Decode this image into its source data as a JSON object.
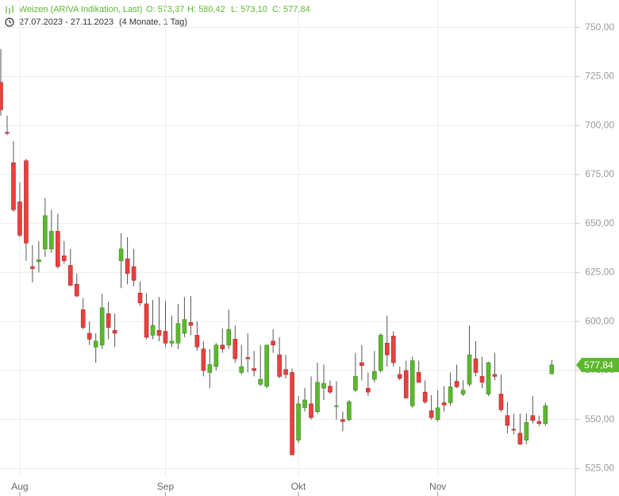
{
  "chart_data": {
    "type": "candlestick",
    "title": "Weizen (ARIVA Indikation, Last)",
    "ohlc_labels": [
      "O: 573,37",
      "H: 580,42",
      "L: 573,10",
      "C: 577,84"
    ],
    "subtitle": "27.07.2023 - 27.11.2023",
    "period": "(4 Monate, 1 Tag)",
    "categories": [
      null,
      null,
      null,
      "Aug",
      null,
      null,
      null,
      null,
      null,
      null,
      null,
      null,
      null,
      null,
      null,
      null,
      null,
      null,
      null,
      null,
      null,
      null,
      null,
      null,
      null,
      null,
      "Sep",
      null,
      null,
      null,
      null,
      null,
      null,
      null,
      null,
      null,
      null,
      null,
      null,
      null,
      null,
      null,
      null,
      null,
      null,
      null,
      null,
      "Okt",
      null,
      null,
      null,
      null,
      null,
      null,
      null,
      null,
      null,
      null,
      null,
      null,
      null,
      null,
      null,
      null,
      null,
      null,
      null,
      null,
      null,
      "Nov",
      null,
      null,
      null,
      null,
      null,
      null,
      null,
      null,
      null,
      null,
      null,
      null,
      null,
      null,
      null,
      null,
      null,
      null
    ],
    "open": [
      722,
      696.5,
      681,
      661,
      682,
      628,
      630.5,
      637,
      637,
      646,
      633.5,
      628.6,
      619,
      606,
      594,
      587,
      588,
      604,
      595.5,
      631,
      632,
      628,
      614.5,
      609,
      593,
      595.5,
      595,
      589,
      589,
      594,
      599.5,
      593,
      586,
      574,
      577,
      588,
      588,
      591,
      574,
      581.6,
      576,
      568,
      567,
      590,
      583,
      575.5,
      574,
      539.5,
      556,
      558,
      554,
      566,
      567,
      557,
      550,
      550,
      565,
      579,
      566,
      570.5,
      575,
      589,
      592.6,
      573,
      575,
      557,
      574,
      564,
      554.5,
      550,
      558.6,
      558.6,
      569.5,
      563,
      568,
      581,
      572,
      563,
      573,
      563,
      552,
      545,
      543,
      539.5,
      552,
      549,
      548,
      573.37
    ],
    "high": [
      739,
      705,
      692,
      671,
      683,
      639,
      641,
      663,
      657,
      655,
      641,
      637,
      624.5,
      612,
      600,
      594,
      614,
      610,
      604,
      645,
      643,
      637,
      620.5,
      614.5,
      611,
      612.5,
      610.5,
      603,
      609,
      612.5,
      613,
      600,
      590,
      586,
      589,
      596.5,
      606,
      598,
      588,
      594,
      585,
      588,
      588,
      596,
      592,
      583,
      576,
      562,
      566,
      572,
      579,
      578,
      570,
      569.5,
      554,
      560,
      584,
      588,
      574,
      585,
      594,
      603,
      595,
      577,
      580,
      582,
      580,
      570,
      562.5,
      565,
      567,
      574,
      578,
      570,
      598,
      590,
      582,
      579.5,
      584,
      573,
      559,
      553,
      553,
      553,
      562,
      552,
      558.5,
      580.42
    ],
    "low": [
      705,
      695,
      656,
      643,
      631,
      620,
      625,
      633,
      635,
      627,
      629.5,
      618,
      612.5,
      596,
      588,
      579,
      586,
      591,
      587,
      617,
      619,
      618,
      608,
      591,
      591,
      590,
      587,
      587,
      586,
      592,
      593,
      585,
      572,
      566,
      575,
      584,
      586,
      579,
      573,
      574,
      572,
      567,
      566,
      584,
      571,
      571,
      532,
      538,
      554,
      550,
      553,
      560,
      563,
      550,
      544,
      549,
      564,
      570,
      562,
      569,
      574,
      577,
      577,
      570,
      561,
      556,
      569,
      558,
      550,
      549,
      554,
      557,
      566,
      562,
      567,
      572,
      566,
      562,
      570,
      554,
      543,
      542.5,
      537,
      537.5,
      548,
      546.7,
      546.7,
      573.1
    ],
    "close": [
      708,
      696,
      657,
      644,
      640,
      627,
      631.5,
      654,
      646,
      628,
      631,
      618.5,
      613,
      597,
      591,
      590,
      607,
      597,
      594,
      637,
      624.5,
      621,
      609.5,
      592,
      598,
      593,
      589,
      590,
      599,
      601,
      598,
      587,
      575,
      578,
      588,
      586,
      596,
      581,
      577,
      581,
      575,
      570.5,
      588,
      588,
      572,
      573,
      532,
      558,
      560,
      551,
      569,
      568.5,
      564,
      557,
      549,
      559,
      572,
      577.5,
      564,
      574.5,
      593,
      583,
      579,
      571,
      561,
      580,
      569,
      559,
      551,
      556,
      557.4,
      566.7,
      566.7,
      565,
      583,
      574,
      569,
      579,
      572,
      555,
      547,
      544.8,
      537.5,
      548.5,
      549.5,
      548,
      557,
      577.84
    ],
    "last_label": "577,84",
    "up_color": "#5cb82e",
    "down_color": "#e8413f",
    "ylim": [
      511,
      764
    ],
    "yticks": [
      {
        "value": 525,
        "label": "525,00"
      },
      {
        "value": 550,
        "label": "550,00"
      },
      {
        "value": 575,
        "label": "575,00"
      },
      {
        "value": 600,
        "label": "600,00"
      },
      {
        "value": 625,
        "label": "625,00"
      },
      {
        "value": 650,
        "label": "650,00"
      },
      {
        "value": 675,
        "label": "675,00"
      },
      {
        "value": 700,
        "label": "700,00"
      },
      {
        "value": 725,
        "label": "725,00"
      },
      {
        "value": 750,
        "label": "750,00"
      }
    ],
    "grid": true
  }
}
